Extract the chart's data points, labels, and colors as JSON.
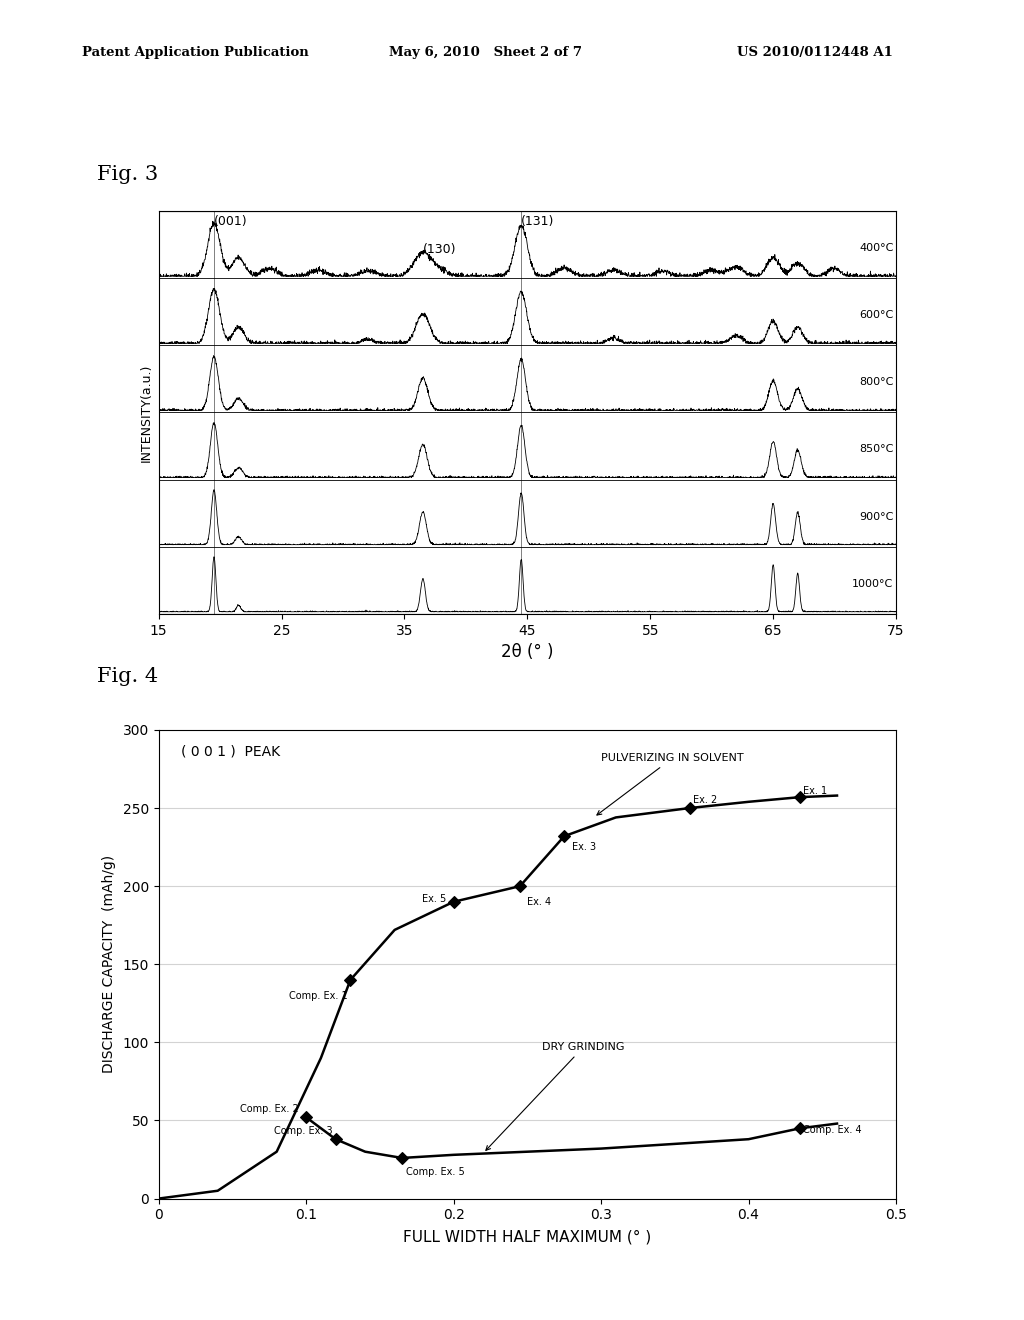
{
  "header_left": "Patent Application Publication",
  "header_mid": "May 6, 2010   Sheet 2 of 7",
  "header_right": "US 2010/0112448 A1",
  "fig3_label": "Fig. 3",
  "fig4_label": "Fig. 4",
  "fig3": {
    "xlabel": "2θ (° )",
    "ylabel": "INTENSITY(a.u.)",
    "xmin": 15,
    "xmax": 75,
    "xticks": [
      15,
      25,
      35,
      45,
      55,
      65,
      75
    ],
    "ann_001_x": 19.5,
    "ann_130_x": 36.5,
    "ann_131_x": 44.5,
    "temperatures": [
      "400°C",
      "600°C",
      "800°C",
      "850°C",
      "900°C",
      "1000°C"
    ]
  },
  "fig4": {
    "xlabel": "FULL WIDTH HALF MAXIMUM (° )",
    "ylabel": "DISCHARGE CAPACITY  (mAh/g)",
    "xmin": 0,
    "xmax": 0.5,
    "xticks": [
      0,
      0.1,
      0.2,
      0.3,
      0.4,
      0.5
    ],
    "ymin": 0,
    "ymax": 300,
    "yticks": [
      0,
      50,
      100,
      150,
      200,
      250,
      300
    ],
    "legend_text": "( 0 0 1 )  PEAK"
  }
}
